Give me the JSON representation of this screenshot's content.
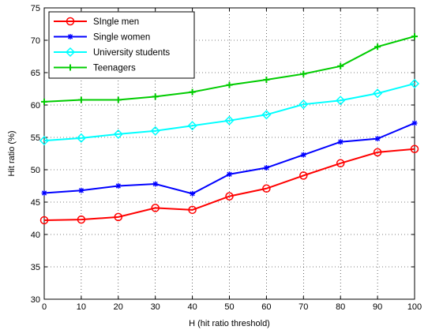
{
  "chart_data": {
    "type": "line",
    "title": "",
    "xlabel": "H (hit ratio threshold)",
    "ylabel": "Hit ratio (%)",
    "x": [
      0,
      10,
      20,
      30,
      40,
      50,
      60,
      70,
      80,
      90,
      100
    ],
    "xlim": [
      0,
      100
    ],
    "ylim": [
      30,
      75
    ],
    "xticks": [
      "0",
      "10",
      "20",
      "30",
      "40",
      "50",
      "60",
      "70",
      "80",
      "90",
      "100"
    ],
    "yticks": [
      "30",
      "35",
      "40",
      "45",
      "50",
      "55",
      "60",
      "65",
      "70",
      "75"
    ],
    "grid": true,
    "grid_style": "dotted",
    "legend_position": "top-left",
    "series": [
      {
        "name": "SIngle men",
        "color": "#ff0000",
        "marker": "circle",
        "values": [
          42.2,
          42.3,
          42.7,
          44.1,
          43.8,
          45.9,
          47.1,
          49.1,
          51.0,
          52.7,
          53.2
        ]
      },
      {
        "name": "Single women",
        "color": "#0000ff",
        "marker": "star",
        "values": [
          46.4,
          46.8,
          47.5,
          47.8,
          46.3,
          49.3,
          50.3,
          52.3,
          54.3,
          54.8,
          57.2
        ]
      },
      {
        "name": "University students",
        "color": "#00ffff",
        "marker": "diamond",
        "values": [
          54.5,
          54.9,
          55.5,
          56.0,
          56.8,
          57.6,
          58.5,
          60.1,
          60.7,
          61.8,
          63.3
        ]
      },
      {
        "name": "Teenagers",
        "color": "#00cc00",
        "marker": "plus",
        "values": [
          60.5,
          60.8,
          60.8,
          61.3,
          62.0,
          63.1,
          63.9,
          64.8,
          66.0,
          69.0,
          70.6
        ]
      }
    ]
  }
}
